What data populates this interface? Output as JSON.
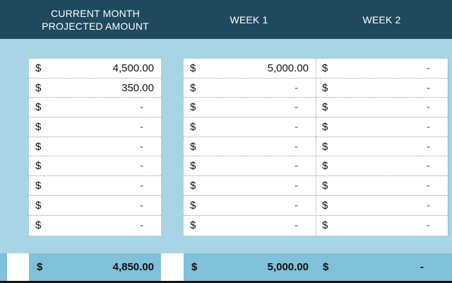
{
  "header": {
    "columns": [
      {
        "label": "CURRENT MONTH\nPROJECTED AMOUNT",
        "line1": "CURRENT MONTH",
        "line2": "PROJECTED AMOUNT"
      },
      {
        "label": "WEEK 1"
      },
      {
        "label": "WEEK 2"
      }
    ]
  },
  "currency_symbol": "$",
  "columns": {
    "projected": {
      "rows": [
        "4,500.00",
        "350.00",
        "-",
        "-",
        "-",
        "-",
        "-",
        "-",
        "-"
      ]
    },
    "week1": {
      "rows": [
        "5,000.00",
        "-",
        "-",
        "-",
        "-",
        "-",
        "-",
        "-",
        "-"
      ]
    },
    "week2": {
      "rows": [
        "-",
        "-",
        "-",
        "-",
        "-",
        "-",
        "-",
        "-",
        "-"
      ]
    }
  },
  "totals": {
    "projected": "4,850.00",
    "week1": "5,000.00",
    "week2": "-"
  },
  "colors": {
    "header_bg": "#1f4a5e",
    "band_bg": "#a9d4e5",
    "total_bg": "#7fc0da"
  }
}
